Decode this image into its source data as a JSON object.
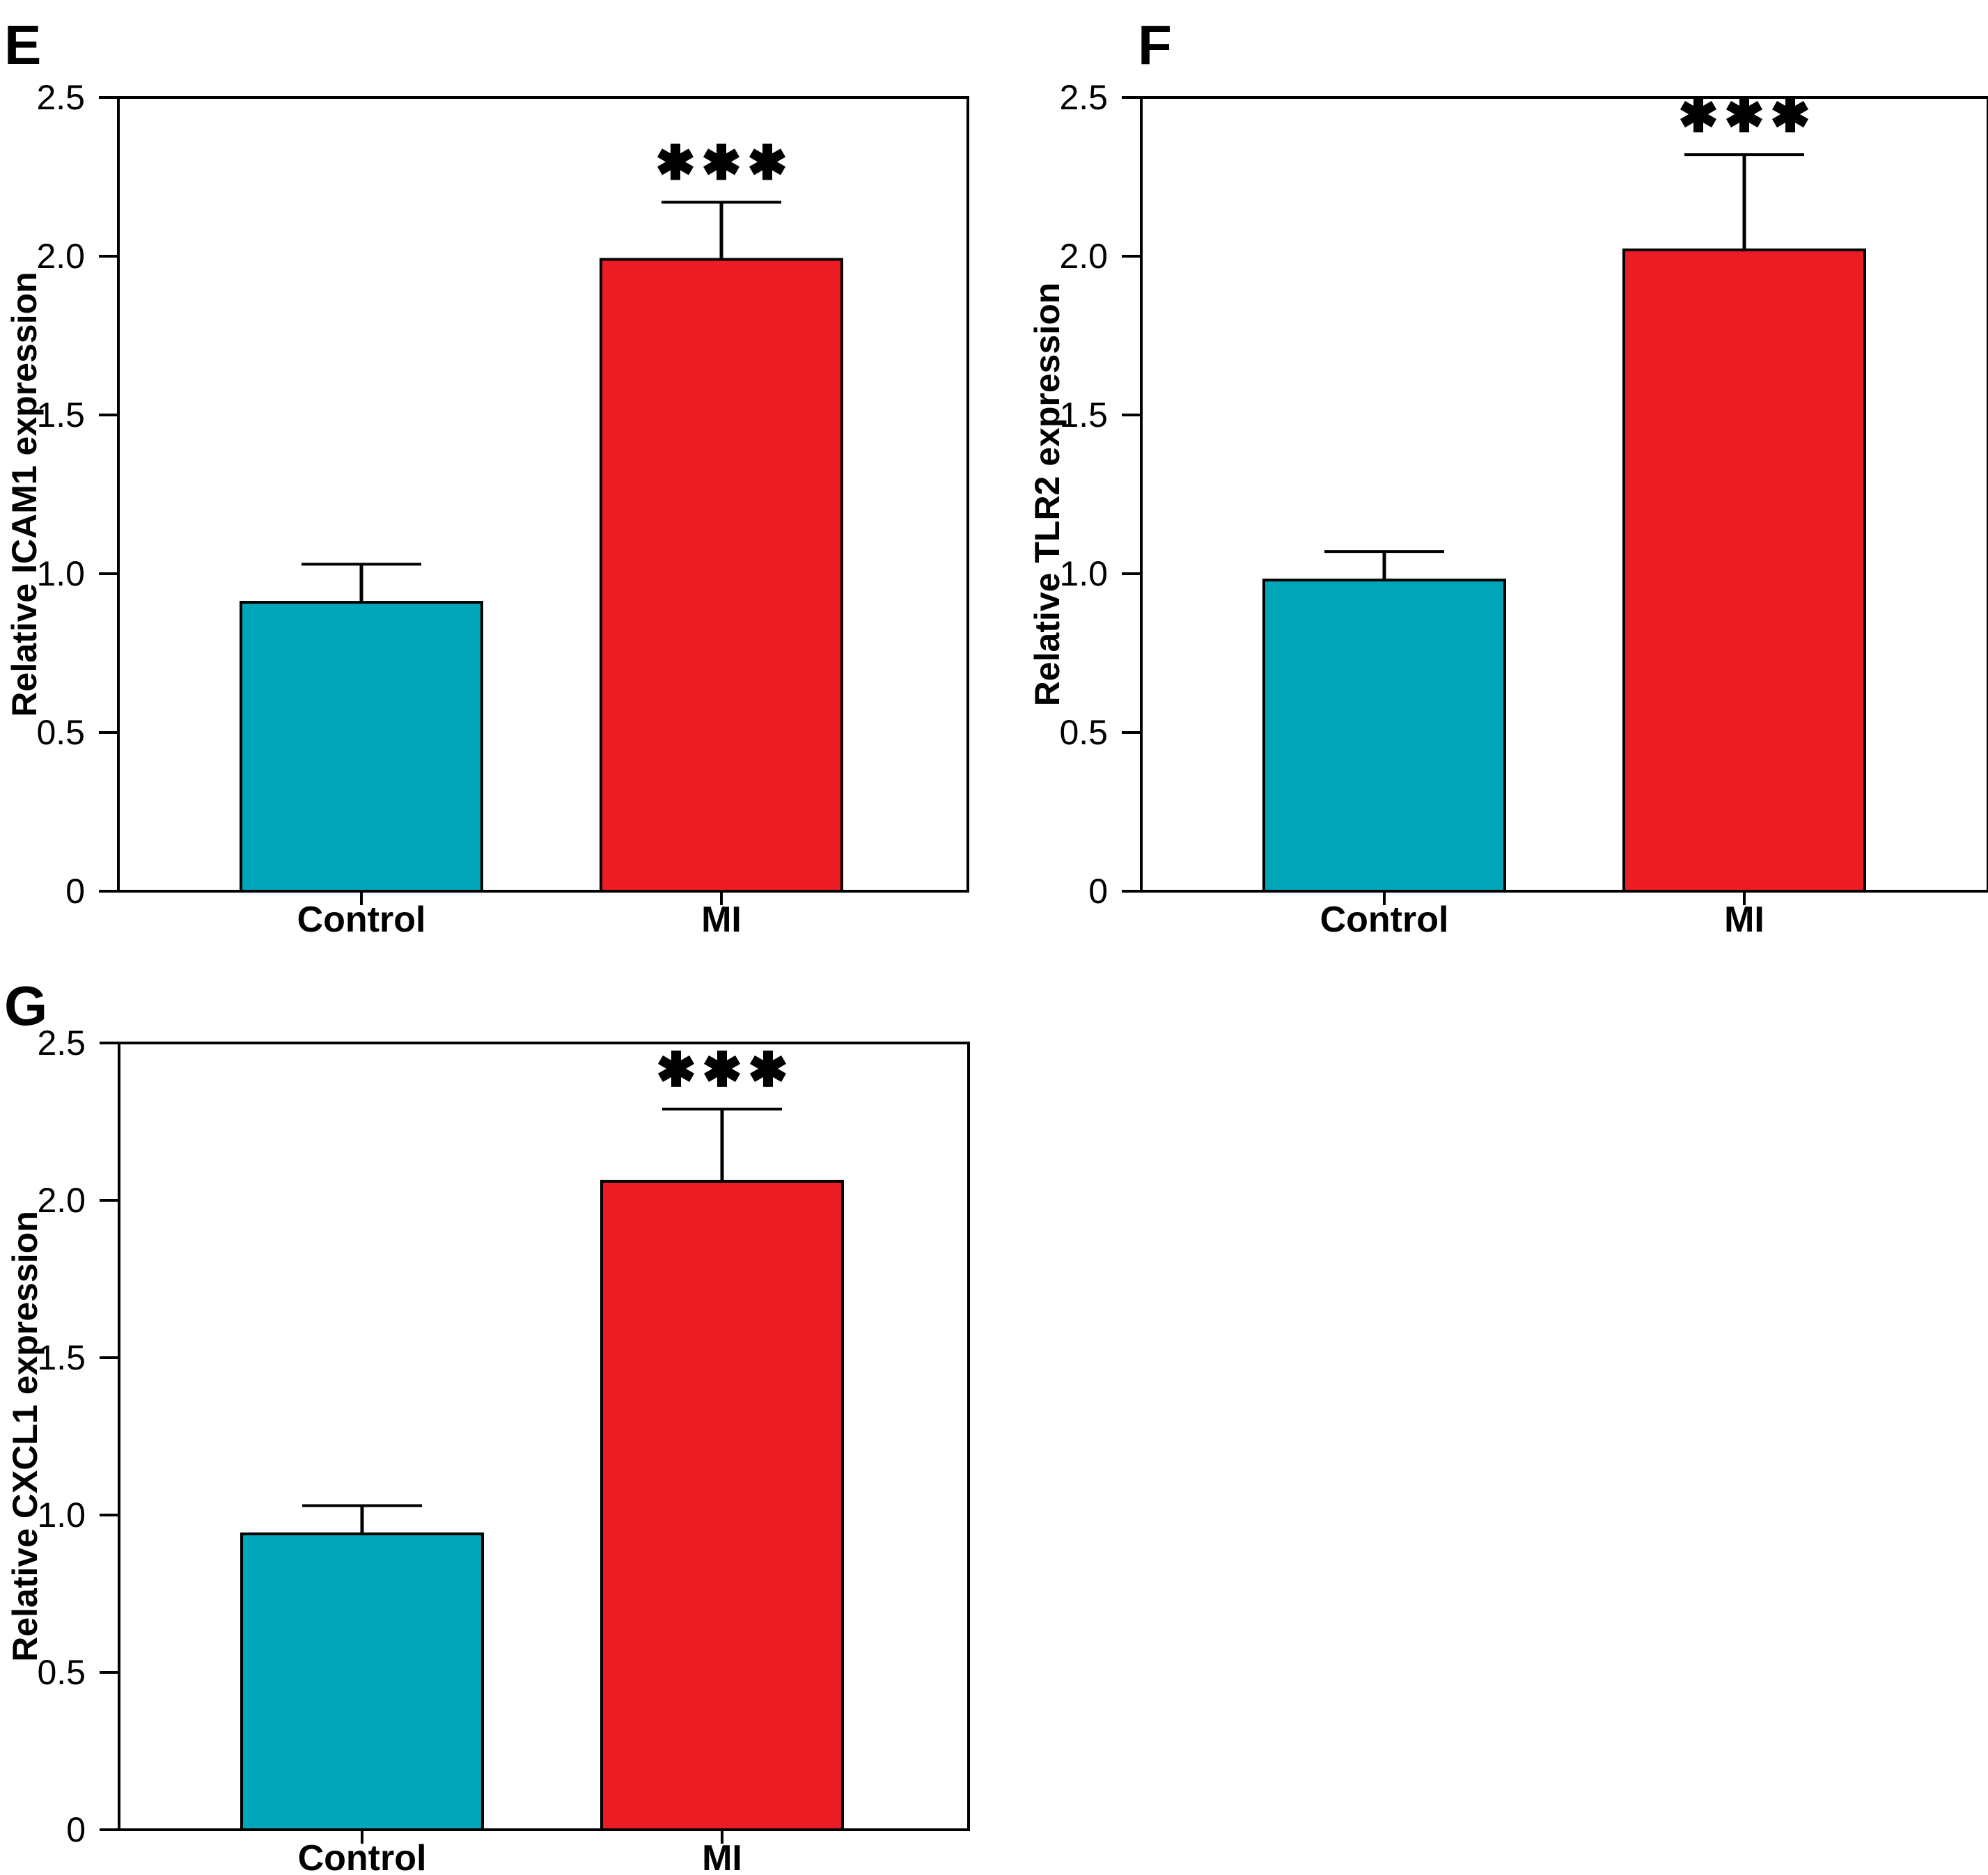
{
  "figure": {
    "background": "#ffffff",
    "axis_color": "#000000",
    "bar_colors": {
      "control": "#00A5B8",
      "mi": "#EC1C24"
    },
    "panel_letters": [
      "E",
      "F",
      "G"
    ]
  },
  "chart_data": [
    {
      "type": "bar",
      "panel_letter": "E",
      "title": "",
      "xlabel": "",
      "ylabel": "Relative ICAM1 expression",
      "categories": [
        "Control",
        "MI"
      ],
      "values": [
        0.91,
        1.99
      ],
      "errors_up": [
        0.12,
        0.18
      ],
      "bar_colors": [
        "#00A5B8",
        "#EC1C24"
      ],
      "significance": {
        "label": "***",
        "over_category": "MI"
      },
      "ylim": [
        0,
        2.5
      ],
      "ytick_values": [
        0,
        0.5,
        1.0,
        1.5,
        2.0,
        2.5
      ],
      "ytick_labels": [
        "0",
        "0.5",
        "1.0",
        "1.5",
        "2.0",
        "2.5"
      ],
      "grid": false,
      "legend": "none"
    },
    {
      "type": "bar",
      "panel_letter": "F",
      "title": "",
      "xlabel": "",
      "ylabel": "Relative TLR2 expression",
      "categories": [
        "Control",
        "MI"
      ],
      "values": [
        0.98,
        2.02
      ],
      "errors_up": [
        0.09,
        0.3
      ],
      "bar_colors": [
        "#00A5B8",
        "#EC1C24"
      ],
      "significance": {
        "label": "***",
        "over_category": "MI"
      },
      "ylim": [
        0,
        2.5
      ],
      "ytick_values": [
        0,
        0.5,
        1.0,
        1.5,
        2.0,
        2.5
      ],
      "ytick_labels": [
        "0",
        "0.5",
        "1.0",
        "1.5",
        "2.0",
        "2.5"
      ],
      "grid": false,
      "legend": "none"
    },
    {
      "type": "bar",
      "panel_letter": "G",
      "title": "",
      "xlabel": "",
      "ylabel": "Relative CXCL1 expression",
      "categories": [
        "Control",
        "MI"
      ],
      "values": [
        0.94,
        2.06
      ],
      "errors_up": [
        0.09,
        0.23
      ],
      "bar_colors": [
        "#00A5B8",
        "#EC1C24"
      ],
      "significance": {
        "label": "***",
        "over_category": "MI"
      },
      "ylim": [
        0,
        2.5
      ],
      "ytick_values": [
        0,
        0.5,
        1.0,
        1.5,
        2.0,
        2.5
      ],
      "ytick_labels": [
        "0",
        "0.5",
        "1.0",
        "1.5",
        "2.0",
        "2.5"
      ],
      "grid": false,
      "legend": "none"
    }
  ]
}
